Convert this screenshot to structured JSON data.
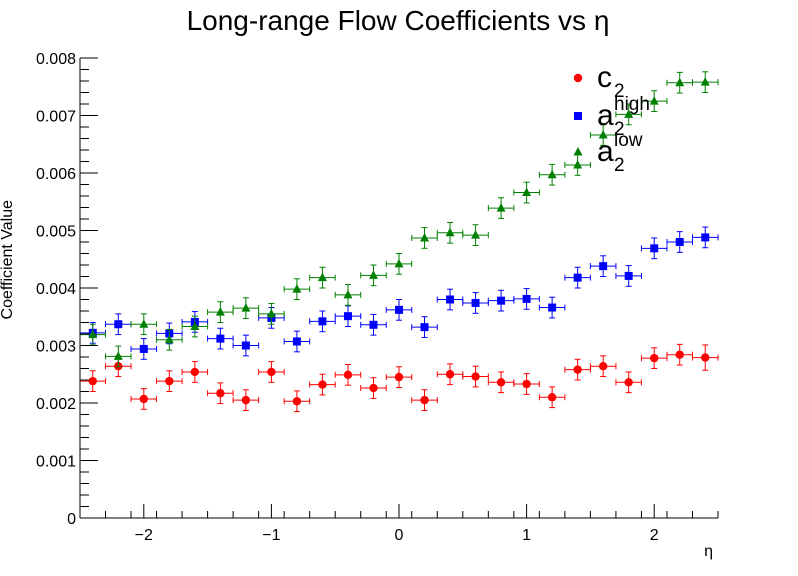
{
  "chart_data": {
    "type": "scatter",
    "title": "Long-range Flow Coefficients vs   η",
    "xlabel": "η",
    "ylabel": "Coefficient Value",
    "xlim": [
      -2.5,
      2.5
    ],
    "ylim": [
      0,
      0.008
    ],
    "x_ticks": [
      -2,
      -1,
      0,
      1,
      2
    ],
    "x_tick_labels": [
      "−2",
      "−1",
      "0",
      "1",
      "2"
    ],
    "y_ticks": [
      0,
      0.001,
      0.002,
      0.003,
      0.004,
      0.005,
      0.006,
      0.007,
      0.008
    ],
    "y_tick_labels": [
      "0",
      "0.001",
      "0.002",
      "0.003",
      "0.004",
      "0.005",
      "0.006",
      "0.007",
      "0.008"
    ],
    "x_error": 0.1,
    "grid": false,
    "legend_position": "top-right",
    "x": [
      -2.4,
      -2.2,
      -2.0,
      -1.8,
      -1.6,
      -1.4,
      -1.2,
      -1.0,
      -0.8,
      -0.6,
      -0.4,
      -0.2,
      0.0,
      0.2,
      0.4,
      0.6,
      0.8,
      1.0,
      1.2,
      1.4,
      1.6,
      1.8,
      2.0,
      2.2,
      2.4
    ],
    "series": [
      {
        "legend_main": "c",
        "legend_sub": "2",
        "legend_sup": "",
        "color": "#ff0000",
        "marker": "circle",
        "values": [
          0.00238,
          0.00264,
          0.00207,
          0.00238,
          0.00254,
          0.00217,
          0.00205,
          0.00254,
          0.00203,
          0.00232,
          0.00249,
          0.00226,
          0.00245,
          0.00205,
          0.0025,
          0.00246,
          0.00236,
          0.00233,
          0.0021,
          0.00258,
          0.00264,
          0.00236,
          0.00278,
          0.00284,
          0.00279
        ],
        "errors": [
          0.00018,
          0.00018,
          0.00018,
          0.00018,
          0.00018,
          0.00018,
          0.00018,
          0.00018,
          0.00018,
          0.00018,
          0.00018,
          0.00018,
          0.00018,
          0.00018,
          0.00018,
          0.00018,
          0.00018,
          0.00018,
          0.00018,
          0.00018,
          0.00018,
          0.00018,
          0.00018,
          0.00018,
          0.00022
        ]
      },
      {
        "legend_main": "a",
        "legend_sub": "2",
        "legend_sup": "high",
        "color": "#0000ff",
        "marker": "square",
        "values": [
          0.00322,
          0.00337,
          0.00294,
          0.00321,
          0.00341,
          0.00312,
          0.003,
          0.00348,
          0.00307,
          0.00342,
          0.00351,
          0.00336,
          0.00362,
          0.00332,
          0.0038,
          0.00374,
          0.00378,
          0.00381,
          0.00366,
          0.00418,
          0.00438,
          0.00421,
          0.00469,
          0.0048,
          0.00488
        ],
        "errors": [
          0.00018,
          0.00018,
          0.00018,
          0.00018,
          0.00018,
          0.00018,
          0.00018,
          0.00018,
          0.00018,
          0.00018,
          0.00018,
          0.00018,
          0.00018,
          0.00018,
          0.00018,
          0.00018,
          0.00018,
          0.00018,
          0.00018,
          0.00018,
          0.00018,
          0.00018,
          0.00018,
          0.00018,
          0.00018
        ]
      },
      {
        "legend_main": "a",
        "legend_sub": "2",
        "legend_sup": "low",
        "color": "#008000",
        "marker": "triangle",
        "values": [
          0.00319,
          0.00281,
          0.00337,
          0.0031,
          0.00333,
          0.00358,
          0.00365,
          0.00355,
          0.00398,
          0.00418,
          0.00388,
          0.00422,
          0.00442,
          0.00487,
          0.00496,
          0.00492,
          0.00539,
          0.00566,
          0.00597,
          0.00614,
          0.00666,
          0.00702,
          0.00725,
          0.00757,
          0.00758
        ],
        "errors": [
          0.00018,
          0.00018,
          0.00018,
          0.00018,
          0.00018,
          0.00018,
          0.00018,
          0.00018,
          0.00018,
          0.00018,
          0.00018,
          0.00018,
          0.00018,
          0.00018,
          0.00018,
          0.00018,
          0.00018,
          0.00018,
          0.00018,
          0.00018,
          0.00018,
          0.00018,
          0.00018,
          0.00018,
          0.00018
        ]
      }
    ]
  }
}
